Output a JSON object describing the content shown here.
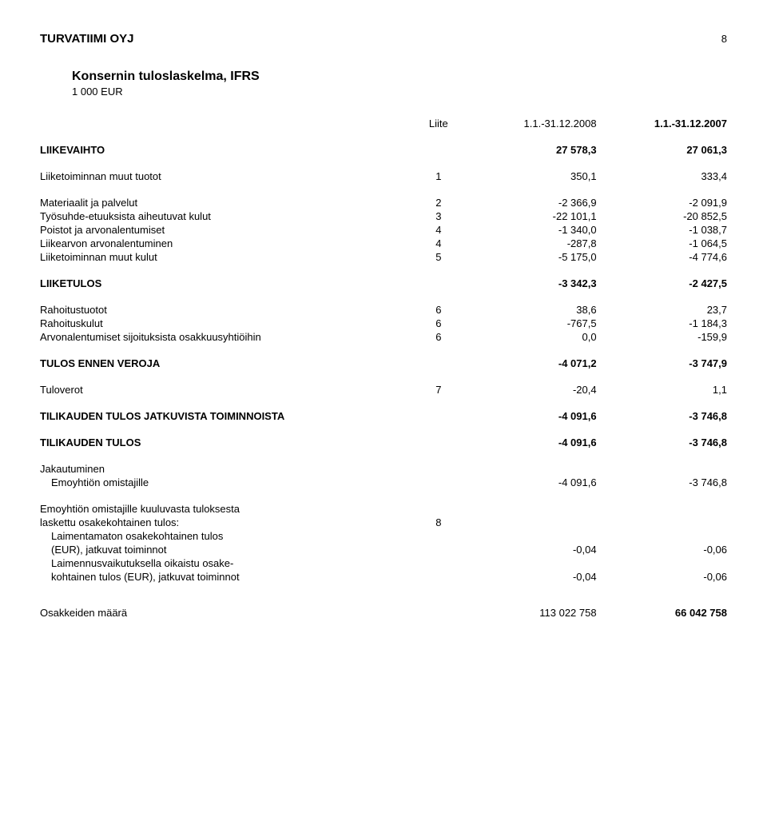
{
  "header": {
    "company": "TURVATIIMI OYJ",
    "page": "8"
  },
  "title": "Konsernin tuloslaskelma, IFRS",
  "subtitle": "1 000 EUR",
  "columns": {
    "liite": "Liite",
    "period1": "1.1.-31.12.2008",
    "period2": "1.1.-31.12.2007"
  },
  "rows": {
    "liikevaihto": {
      "label": "LIIKEVAIHTO",
      "v1": "27 578,3",
      "v2": "27 061,3"
    },
    "muut_tuotot": {
      "label": "Liiketoiminnan muut tuotot",
      "liite": "1",
      "v1": "350,1",
      "v2": "333,4"
    },
    "materiaalit": {
      "label": "Materiaalit ja palvelut",
      "liite": "2",
      "v1": "-2 366,9",
      "v2": "-2 091,9"
    },
    "tyosuhde": {
      "label": "Työsuhde-etuuksista aiheutuvat kulut",
      "liite": "3",
      "v1": "-22 101,1",
      "v2": "-20 852,5"
    },
    "poistot": {
      "label": "Poistot ja arvonalentumiset",
      "liite": "4",
      "v1": "-1 340,0",
      "v2": "-1 038,7"
    },
    "liikearvon": {
      "label": "Liikearvon arvonalentuminen",
      "liite": "4",
      "v1": "-287,8",
      "v2": "-1 064,5"
    },
    "muut_kulut": {
      "label": "Liiketoiminnan muut kulut",
      "liite": "5",
      "v1": "-5 175,0",
      "v2": "-4 774,6"
    },
    "liiketulos": {
      "label": "LIIKETULOS",
      "v1": "-3 342,3",
      "v2": "-2 427,5"
    },
    "rahoitustuotot": {
      "label": "Rahoitustuotot",
      "liite": "6",
      "v1": "38,6",
      "v2": "23,7"
    },
    "rahoituskulut": {
      "label": "Rahoituskulut",
      "liite": "6",
      "v1": "-767,5",
      "v2": "-1 184,3"
    },
    "arvonalentumiset": {
      "label": "Arvonalentumiset sijoituksista osakkuusyhtiöihin",
      "liite": "6",
      "v1": "0,0",
      "v2": "-159,9"
    },
    "tulos_ennen": {
      "label": "TULOS ENNEN VEROJA",
      "v1": "-4 071,2",
      "v2": "-3 747,9"
    },
    "tuloverot": {
      "label": "Tuloverot",
      "liite": "7",
      "v1": "-20,4",
      "v2": "1,1"
    },
    "tilikauden_jatk": {
      "label": "TILIKAUDEN TULOS JATKUVISTA TOIMINNOISTA",
      "v1": "-4 091,6",
      "v2": "-3 746,8"
    },
    "tilikauden_tulos": {
      "label": "TILIKAUDEN TULOS",
      "v1": "-4 091,6",
      "v2": "-3 746,8"
    },
    "jakautuminen": {
      "label": "Jakautuminen"
    },
    "emoyhtion_om": {
      "label": "Emoyhtiön omistajille",
      "v1": "-4 091,6",
      "v2": "-3 746,8"
    },
    "emoyhtion_kuul1": {
      "label": "Emoyhtiön omistajille kuuluvasta tuloksesta"
    },
    "emoyhtion_kuul2": {
      "label": "laskettu osakekohtainen tulos:",
      "liite": "8"
    },
    "laimentamaton1": {
      "label": "Laimentamaton osakekohtainen tulos"
    },
    "laimentamaton2": {
      "label": "(EUR), jatkuvat toiminnot",
      "v1": "-0,04",
      "v2": "-0,06"
    },
    "laimennus1": {
      "label": "Laimennusvaikutuksella oikaistu osake-"
    },
    "laimennus2": {
      "label": "kohtainen tulos (EUR), jatkuvat toiminnot",
      "v1": "-0,04",
      "v2": "-0,06"
    },
    "osakkeiden": {
      "label": "Osakkeiden määrä",
      "v1": "113 022 758",
      "v2": "66 042 758"
    }
  }
}
